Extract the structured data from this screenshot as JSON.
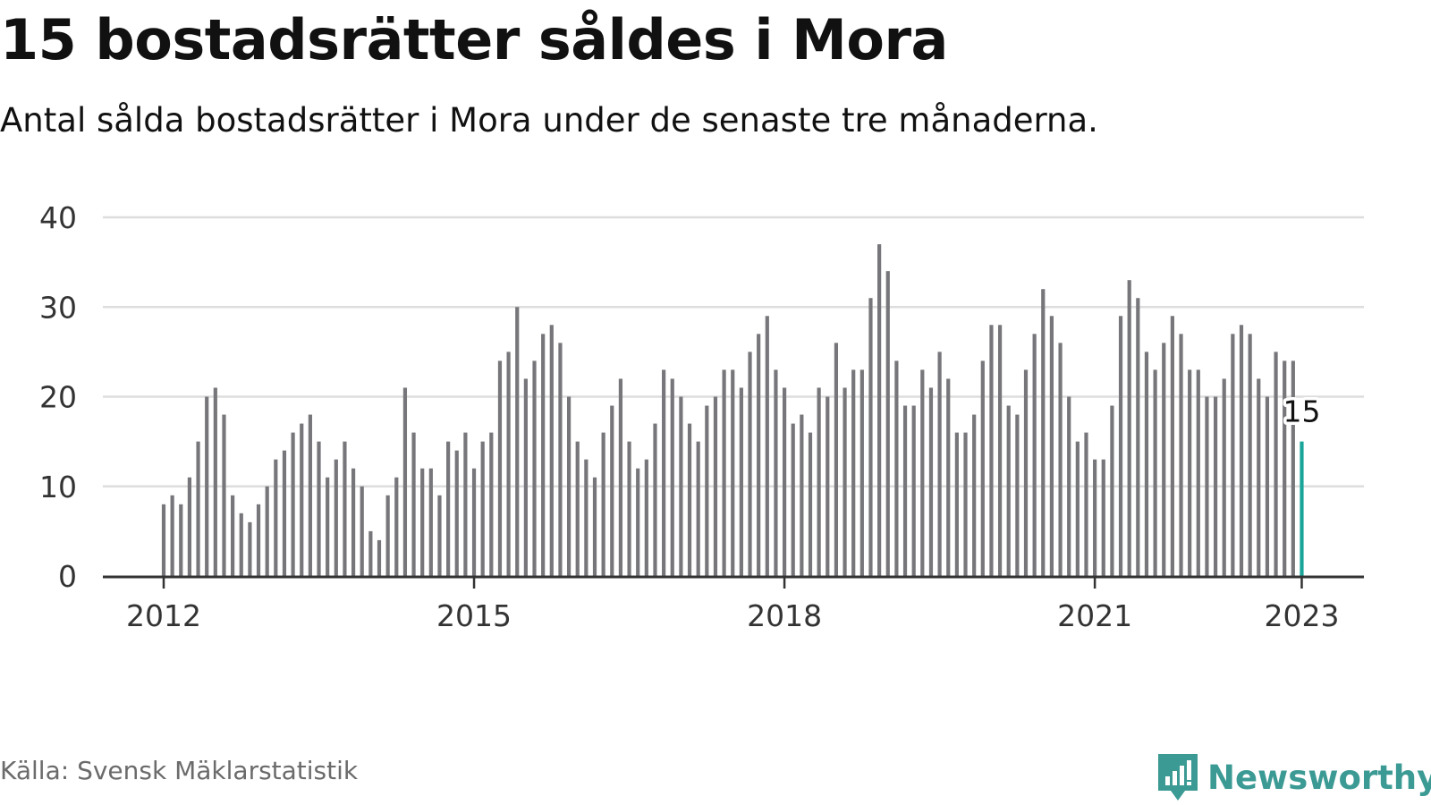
{
  "header": {
    "title": "15 bostadsrätter såldes i Mora",
    "subtitle": "Antal sålda bostadsrätter i Mora under de senaste tre månaderna."
  },
  "footer": {
    "source": "Källa: Svensk Mäklarstatistik",
    "brand": "Newsworthy"
  },
  "colors": {
    "bar": "#77777b",
    "highlight": "#1aa59a",
    "grid": "#dddddd",
    "axis": "#333333",
    "brand": "#3c9a94"
  },
  "icons": {
    "logo": "newsworthy-logo-icon"
  },
  "chart_data": {
    "type": "bar",
    "title": "15 bostadsrätter såldes i Mora",
    "subtitle": "Antal sålda bostadsrätter i Mora under de senaste tre månaderna.",
    "ylim": [
      0,
      40
    ],
    "yticks": [
      0,
      10,
      20,
      30,
      40
    ],
    "xticks": [
      "2012",
      "2015",
      "2018",
      "2021",
      "2023"
    ],
    "grid": true,
    "first_month": "2012-01",
    "last_month": "2023-01",
    "values": [
      8,
      9,
      8,
      11,
      15,
      20,
      21,
      18,
      9,
      7,
      6,
      8,
      10,
      13,
      14,
      16,
      17,
      18,
      15,
      11,
      13,
      15,
      12,
      10,
      5,
      4,
      9,
      11,
      21,
      16,
      12,
      12,
      9,
      15,
      14,
      16,
      12,
      15,
      16,
      24,
      25,
      30,
      22,
      24,
      27,
      28,
      26,
      20,
      15,
      13,
      11,
      16,
      19,
      22,
      15,
      12,
      13,
      17,
      23,
      22,
      20,
      17,
      15,
      19,
      20,
      23,
      23,
      21,
      25,
      27,
      29,
      23,
      21,
      17,
      18,
      16,
      21,
      20,
      26,
      21,
      23,
      23,
      31,
      37,
      34,
      24,
      19,
      19,
      23,
      21,
      25,
      22,
      16,
      16,
      18,
      24,
      28,
      28,
      19,
      18,
      23,
      27,
      32,
      29,
      26,
      20,
      15,
      16,
      13,
      13,
      19,
      29,
      33,
      31,
      25,
      23,
      26,
      29,
      27,
      23,
      23,
      20,
      20,
      22,
      27,
      28,
      27,
      22,
      20,
      25,
      24,
      24,
      15
    ],
    "highlight": {
      "month": "2023-01",
      "value": 15,
      "label": "15"
    }
  }
}
